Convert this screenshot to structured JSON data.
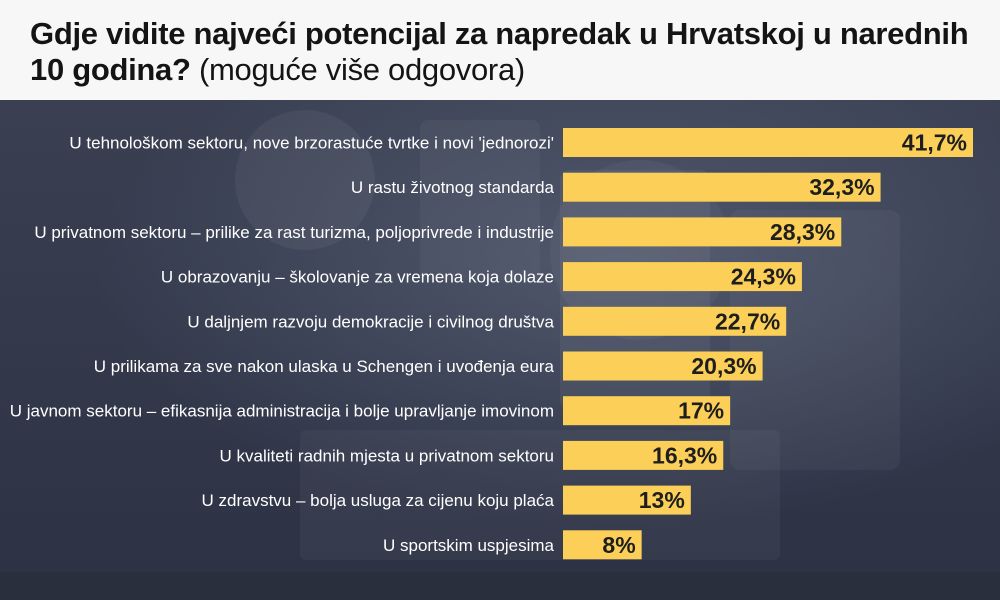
{
  "header": {
    "title_bold": "Gdje vidite najveći potencijal za napredak u Hrvatskoj u narednih 10 godina?",
    "title_light": "(moguće više odgovora)"
  },
  "colors": {
    "bar": "#fbcf58",
    "header_bg": "#f7f7f7",
    "panel_bg": "#2b3244",
    "label_text": "#ffffff",
    "value_text": "#1e1e1e"
  },
  "chart_data": {
    "type": "bar",
    "orientation": "horizontal",
    "categories": [
      "U tehnološkom sektoru, nove brzorastuće tvrtke i novi 'jednorozi'",
      "U rastu životnog standarda",
      "U privatnom sektoru – prilike za rast turizma, poljoprivrede i industrije",
      "U obrazovanju – školovanje za vremena koja dolaze",
      "U daljnjem razvoju demokracije i civilnog društva",
      "U prilikama za sve nakon ulaska u Schengen i uvođenja eura",
      "U javnom sektoru – efikasnija administracija i bolje upravljanje imovinom",
      "U kvaliteti radnih mjesta u privatnom sektoru",
      "U zdravstvu – bolja usluga za cijenu koju plaća",
      "U sportskim uspjesima"
    ],
    "values": [
      41.7,
      32.3,
      28.3,
      24.3,
      22.7,
      20.3,
      17,
      16.3,
      13,
      8
    ],
    "value_labels": [
      "41,7%",
      "32,3%",
      "28,3%",
      "24,3%",
      "22,7%",
      "20,3%",
      "17%",
      "16,3%",
      "13%",
      "8%"
    ],
    "xlim": [
      0,
      41.7
    ],
    "grid": false,
    "legend": "none"
  }
}
